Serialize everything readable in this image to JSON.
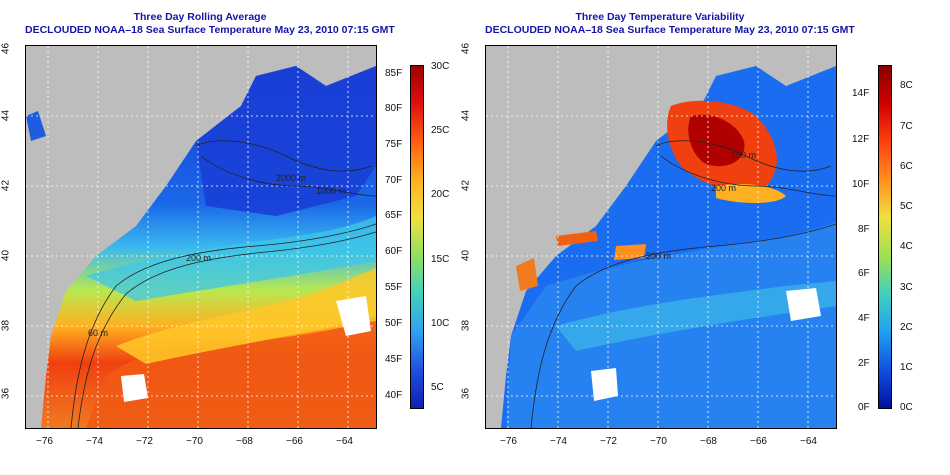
{
  "left": {
    "title_line1": "Three Day Rolling Average",
    "title_line2": "DECLOUDED NOAA–18 Sea Surface Temperature May 23, 2010 07:15 GMT",
    "xticks": [
      "−76",
      "−74",
      "−72",
      "−70",
      "−68",
      "−66",
      "−64"
    ],
    "yticks": [
      "46",
      "44",
      "42",
      "40",
      "38",
      "36"
    ],
    "contour_labels": [
      "2000 m",
      "1000 m",
      "200 m",
      "60 m"
    ],
    "cbar_f": [
      "85F",
      "80F",
      "75F",
      "70F",
      "65F",
      "60F",
      "55F",
      "50F",
      "45F",
      "40F"
    ],
    "cbar_c": [
      "30C",
      "25C",
      "20C",
      "15C",
      "10C",
      "5C"
    ]
  },
  "right": {
    "title_line1": "Three Day Temperature Variability",
    "title_line2": "DECLOUDED NOAA–18 Sea Surface Temperature May 23, 2010 07:15 GMT",
    "xticks": [
      "−76",
      "−74",
      "−72",
      "−70",
      "−68",
      "−66",
      "−64"
    ],
    "yticks": [
      "46",
      "44",
      "42",
      "40",
      "38",
      "36"
    ],
    "contour_labels": [
      "100 m",
      "200 m",
      "200 m"
    ],
    "cbar_f": [
      "14F",
      "12F",
      "10F",
      "8F",
      "6F",
      "4F",
      "2F",
      "0F"
    ],
    "cbar_c": [
      "8C",
      "7C",
      "6C",
      "5C",
      "4C",
      "3C",
      "2C",
      "1C",
      "0C"
    ]
  },
  "colors": {
    "land": "#bdbdbd",
    "title": "#1515a8"
  }
}
